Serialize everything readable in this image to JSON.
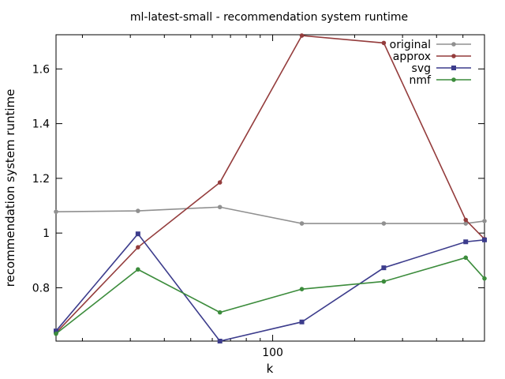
{
  "chart_data": {
    "type": "line",
    "title": "ml-latest-small - recommendation system runtime",
    "xlabel": "k",
    "ylabel": "recommendation system runtime",
    "xscale": "log2",
    "x": [
      16,
      32,
      64,
      128,
      256,
      512,
      600
    ],
    "xlim": [
      16,
      600
    ],
    "ylim": [
      0.605,
      1.725
    ],
    "yticks": [
      0.8,
      1,
      1.2,
      1.4,
      1.6
    ],
    "ytick_labels": [
      "0.8",
      "1",
      "1.2",
      "1.4",
      "1.6"
    ],
    "xticks": [
      100
    ],
    "xtick_labels": [
      "100"
    ],
    "grid": false,
    "legend_position": "top-right",
    "series": [
      {
        "name": "original",
        "color": "#909090",
        "marker": "circle",
        "values": [
          1.078,
          1.081,
          1.095,
          1.035,
          1.035,
          1.035,
          1.044
        ]
      },
      {
        "name": "approx",
        "color": "#943c3c",
        "marker": "circle",
        "values": [
          0.635,
          0.948,
          1.185,
          1.722,
          1.695,
          1.048,
          0.978
        ]
      },
      {
        "name": "svg",
        "color": "#3c3c8c",
        "marker": "square",
        "values": [
          0.642,
          0.997,
          0.605,
          0.675,
          0.873,
          0.968,
          0.975
        ]
      },
      {
        "name": "nmf",
        "color": "#3c8c3c",
        "marker": "circle",
        "values": [
          0.632,
          0.867,
          0.71,
          0.795,
          0.823,
          0.91,
          0.834
        ]
      }
    ]
  }
}
